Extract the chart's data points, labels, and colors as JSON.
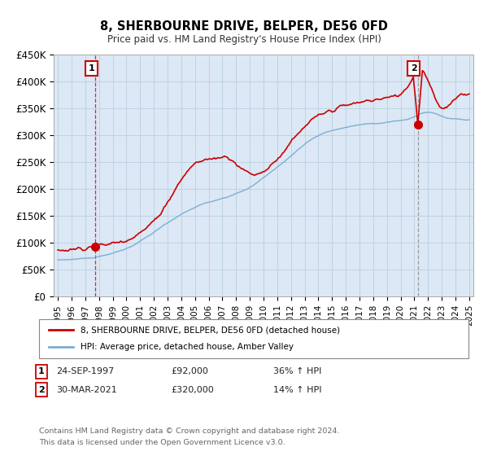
{
  "title": "8, SHERBOURNE DRIVE, BELPER, DE56 0FD",
  "subtitle": "Price paid vs. HM Land Registry's House Price Index (HPI)",
  "ylim": [
    0,
    450000
  ],
  "yticks": [
    0,
    50000,
    100000,
    150000,
    200000,
    250000,
    300000,
    350000,
    400000,
    450000
  ],
  "ytick_labels": [
    "£0",
    "£50K",
    "£100K",
    "£150K",
    "£200K",
    "£250K",
    "£300K",
    "£350K",
    "£400K",
    "£450K"
  ],
  "sale1_year": 1997.75,
  "sale1_price": 92000,
  "sale2_year": 2021.25,
  "sale2_price": 320000,
  "line_color_house": "#cc0000",
  "line_color_hpi": "#7bafd4",
  "plot_bg_color": "#dce8f5",
  "background_color": "#ffffff",
  "grid_color": "#b8cfe0",
  "legend_label_house": "8, SHERBOURNE DRIVE, BELPER, DE56 0FD (detached house)",
  "legend_label_hpi": "HPI: Average price, detached house, Amber Valley",
  "sale1_label": "1",
  "sale1_date_str": "24-SEP-1997",
  "sale1_price_str": "£92,000",
  "sale1_pct": "36% ↑ HPI",
  "sale2_label": "2",
  "sale2_date_str": "30-MAR-2021",
  "sale2_price_str": "£320,000",
  "sale2_pct": "14% ↑ HPI",
  "footer1": "Contains HM Land Registry data © Crown copyright and database right 2024.",
  "footer2": "This data is licensed under the Open Government Licence v3.0."
}
